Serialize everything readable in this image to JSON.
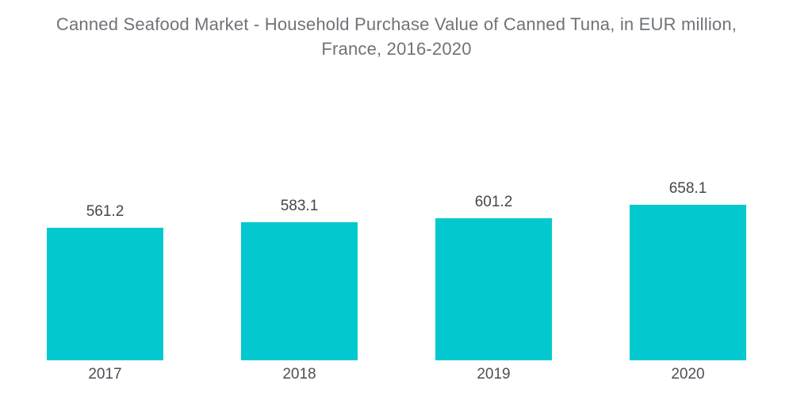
{
  "title": {
    "line1": "Canned Seafood Market - Household Purchase Value of Canned Tuna, in EUR million,",
    "line2": "France, 2016-2020"
  },
  "colors": {
    "bar": "#03C9CF",
    "title_text": "#6F7377",
    "value_label_text": "#43474B",
    "axis_label_text": "#4C5054",
    "background": "#FFFFFF"
  },
  "chart_data": {
    "type": "bar",
    "title": "Canned Seafood Market - Household Purchase Value of Canned Tuna, in EUR million, France, 2016-2020",
    "categories": [
      "2017",
      "2018",
      "2019",
      "2020"
    ],
    "values": [
      561.2,
      583.1,
      601.2,
      658.1
    ],
    "value_labels": [
      "561.2",
      "583.1",
      "601.2",
      "658.1"
    ],
    "series_name": "Household Purchase Value of Canned Tuna (EUR million)",
    "xlabel": "",
    "ylabel": "",
    "ylim": [
      0,
      658.1
    ],
    "baseline": 0,
    "grid": false,
    "legend": false,
    "axes_visible": false,
    "data_labels_position": "above-bar",
    "category_labels_position": "below-bar"
  }
}
